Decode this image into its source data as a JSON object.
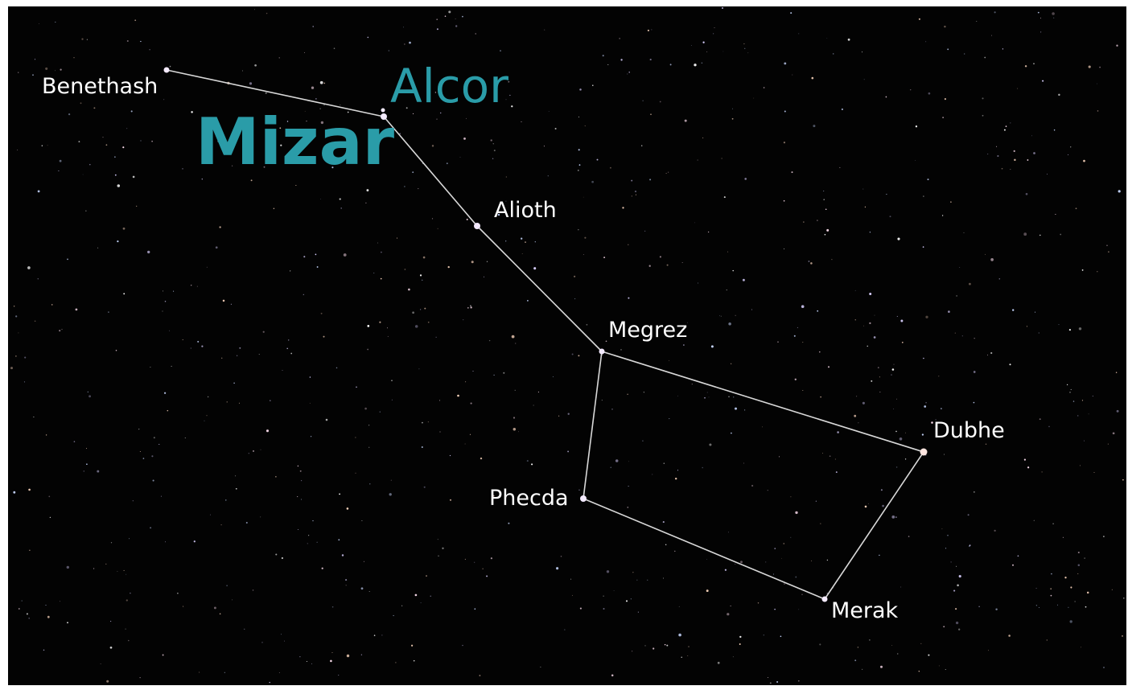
{
  "stars": {
    "benethash": "Benethash",
    "alcor": "Alcor",
    "mizar": "Mizar",
    "alioth": "Alioth",
    "megrez": "Megrez",
    "dubhe": "Dubhe",
    "phecda": "Phecda",
    "merak": "Merak"
  }
}
